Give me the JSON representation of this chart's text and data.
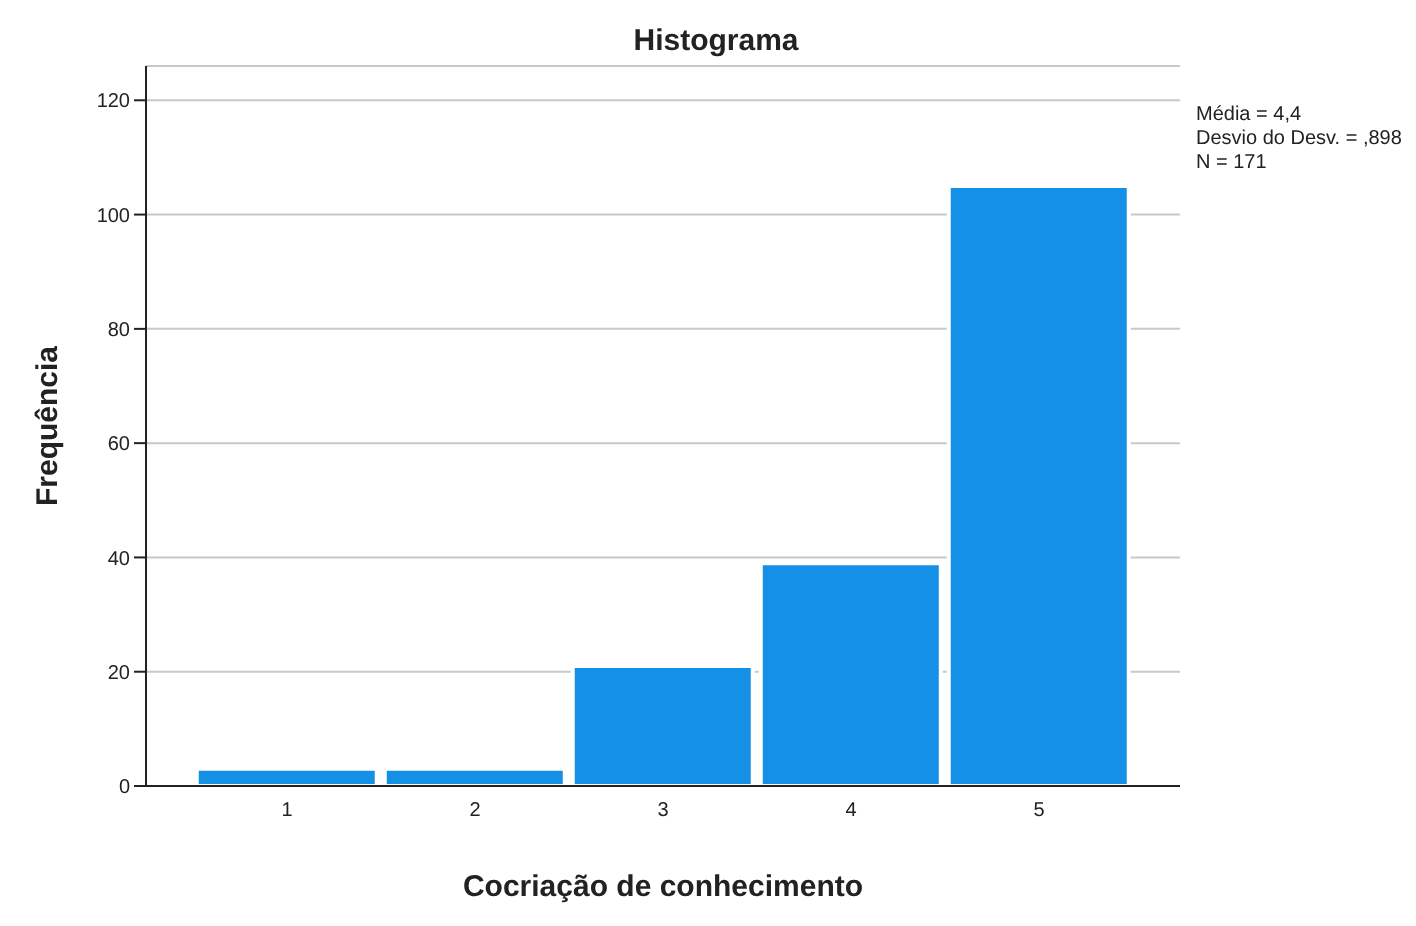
{
  "chart_data": {
    "type": "histogram",
    "title": "Histograma",
    "xlabel": "Cocriação de conhecimento",
    "ylabel": "Frequência",
    "bins": [
      0.5,
      1.5,
      2.5,
      3.5,
      4.5,
      5.5
    ],
    "values": [
      3,
      3,
      21,
      39,
      105
    ],
    "color": "#1491e6",
    "xlim": [
      0.25,
      5.75
    ],
    "xticks": [
      1,
      2,
      3,
      4,
      5
    ],
    "ylim": [
      0,
      126
    ],
    "yticks": [
      0,
      20,
      40,
      60,
      80,
      100,
      120
    ],
    "grid": "y",
    "annotations": [
      "Média = 4,4",
      "Desvio do Desv. = ,898",
      "N = 171"
    ]
  }
}
